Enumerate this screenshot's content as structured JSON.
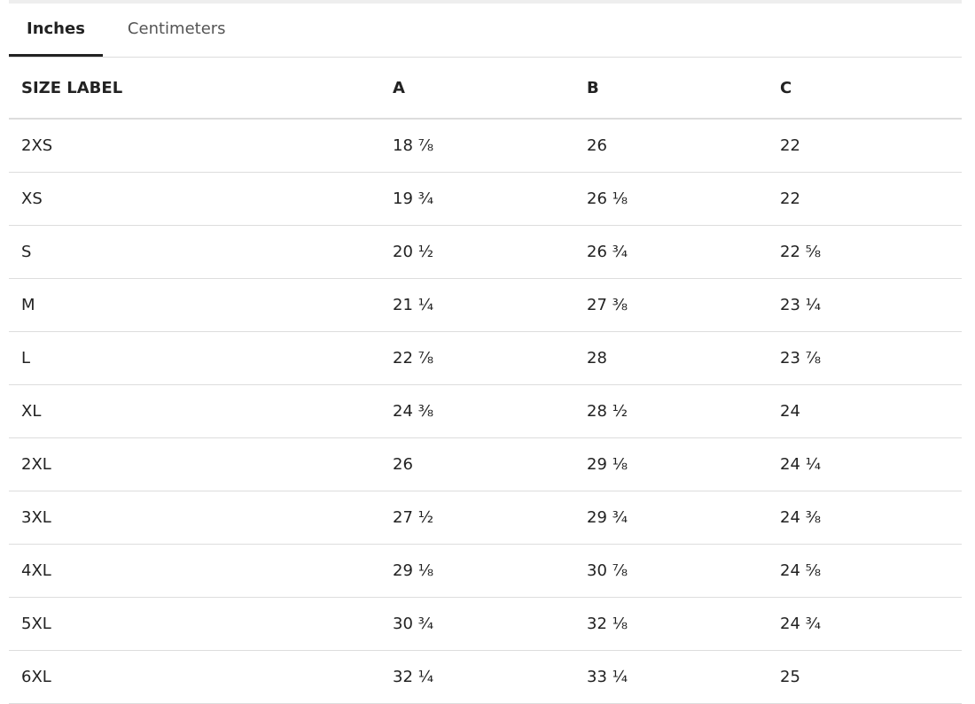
{
  "tabs": [
    "Inches",
    "Centimeters"
  ],
  "table": {
    "header": [
      "SIZE LABEL",
      "A",
      "B",
      "C"
    ],
    "rows": [
      [
        "2XS",
        "18 ⅞",
        "26",
        "22"
      ],
      [
        "XS",
        "19 ¾",
        "26 ⅛",
        "22"
      ],
      [
        "S",
        "20 ½",
        "26 ¾",
        "22 ⅝"
      ],
      [
        "M",
        "21 ¼",
        "27 ⅜",
        "23 ¼"
      ],
      [
        "L",
        "22 ⅞",
        "28",
        "23 ⅞"
      ],
      [
        "XL",
        "24 ⅜",
        "28 ½",
        "24"
      ],
      [
        "2XL",
        "26",
        "29 ⅛",
        "24 ¼"
      ],
      [
        "3XL",
        "27 ½",
        "29 ¾",
        "24 ⅜"
      ],
      [
        "4XL",
        "29 ⅛",
        "30 ⅞",
        "24 ⅝"
      ],
      [
        "5XL",
        "30 ¾",
        "32 ⅛",
        "24 ¾"
      ],
      [
        "6XL",
        "32 ¼",
        "33 ¼",
        "25"
      ]
    ]
  }
}
